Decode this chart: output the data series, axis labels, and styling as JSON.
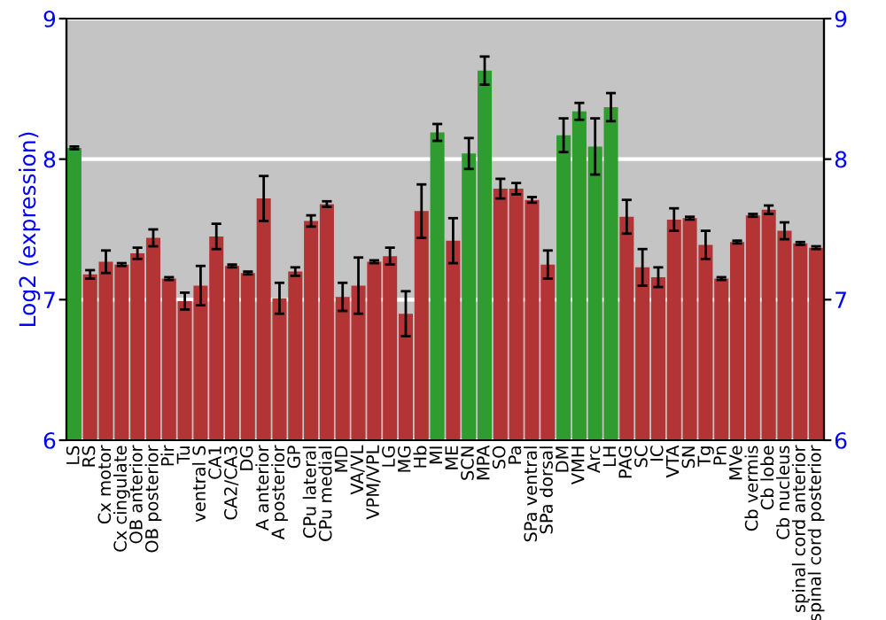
{
  "chart_data": {
    "type": "bar",
    "ylabel": "Log2 (expression)",
    "categories": [
      "LS",
      "RS",
      "Cx motor",
      "Cx cingulate",
      "OB anterior",
      "OB posterior",
      "Pir",
      "Tu",
      "ventral S",
      "CA1",
      "CA2/CA3",
      "DG",
      "A anterior",
      "A posterior",
      "GP",
      "CPu lateral",
      "CPu medial",
      "MD",
      "VA/VL",
      "VPM/VPL",
      "LG",
      "MG",
      "Hb",
      "MI",
      "ME",
      "SCN",
      "MPA",
      "SO",
      "Pa",
      "SPa ventral",
      "SPa dorsal",
      "DM",
      "VMH",
      "Arc",
      "LH",
      "PAG",
      "SC",
      "IC",
      "VTA",
      "SN",
      "Tg",
      "Pn",
      "MVe",
      "Cb vermis",
      "Cb lobe",
      "Cb nucleus",
      "spinal cord anterior",
      "spinal cord posterior"
    ],
    "values": [
      8.08,
      7.18,
      7.27,
      7.25,
      7.33,
      7.44,
      7.15,
      6.99,
      7.1,
      7.45,
      7.24,
      7.19,
      7.72,
      7.01,
      7.2,
      7.56,
      7.68,
      7.02,
      7.1,
      7.27,
      7.31,
      6.9,
      7.63,
      8.19,
      7.42,
      8.04,
      8.63,
      7.79,
      7.79,
      7.71,
      7.25,
      8.17,
      8.34,
      8.09,
      8.37,
      7.59,
      7.23,
      7.16,
      7.57,
      7.58,
      7.39,
      7.15,
      7.41,
      7.6,
      7.64,
      7.49,
      7.4,
      7.37
    ],
    "errors": [
      0.01,
      0.03,
      0.08,
      0.01,
      0.04,
      0.06,
      0.01,
      0.06,
      0.14,
      0.09,
      0.01,
      0.01,
      0.16,
      0.11,
      0.03,
      0.04,
      0.02,
      0.1,
      0.2,
      0.01,
      0.06,
      0.16,
      0.19,
      0.06,
      0.16,
      0.11,
      0.1,
      0.07,
      0.04,
      0.02,
      0.1,
      0.12,
      0.06,
      0.2,
      0.1,
      0.12,
      0.13,
      0.07,
      0.08,
      0.01,
      0.1,
      0.01,
      0.01,
      0.01,
      0.03,
      0.06,
      0.01,
      0.01
    ],
    "colors": [
      "#2e9c2e",
      "#b33434",
      "#b33434",
      "#b33434",
      "#b33434",
      "#b33434",
      "#b33434",
      "#b33434",
      "#b33434",
      "#b33434",
      "#b33434",
      "#b33434",
      "#b33434",
      "#b33434",
      "#b33434",
      "#b33434",
      "#b33434",
      "#b33434",
      "#b33434",
      "#b33434",
      "#b33434",
      "#b33434",
      "#b33434",
      "#2e9c2e",
      "#b33434",
      "#2e9c2e",
      "#2e9c2e",
      "#b33434",
      "#b33434",
      "#b33434",
      "#b33434",
      "#2e9c2e",
      "#2e9c2e",
      "#2e9c2e",
      "#2e9c2e",
      "#b33434",
      "#b33434",
      "#b33434",
      "#b33434",
      "#b33434",
      "#b33434",
      "#b33434",
      "#b33434",
      "#b33434",
      "#b33434",
      "#b33434",
      "#b33434",
      "#b33434"
    ],
    "ylim": [
      6,
      9
    ],
    "yticks": [
      6,
      7,
      8,
      9
    ],
    "y2lim": [
      6,
      9
    ],
    "y2ticks": [
      6,
      7,
      8,
      9
    ],
    "grid": "y"
  }
}
